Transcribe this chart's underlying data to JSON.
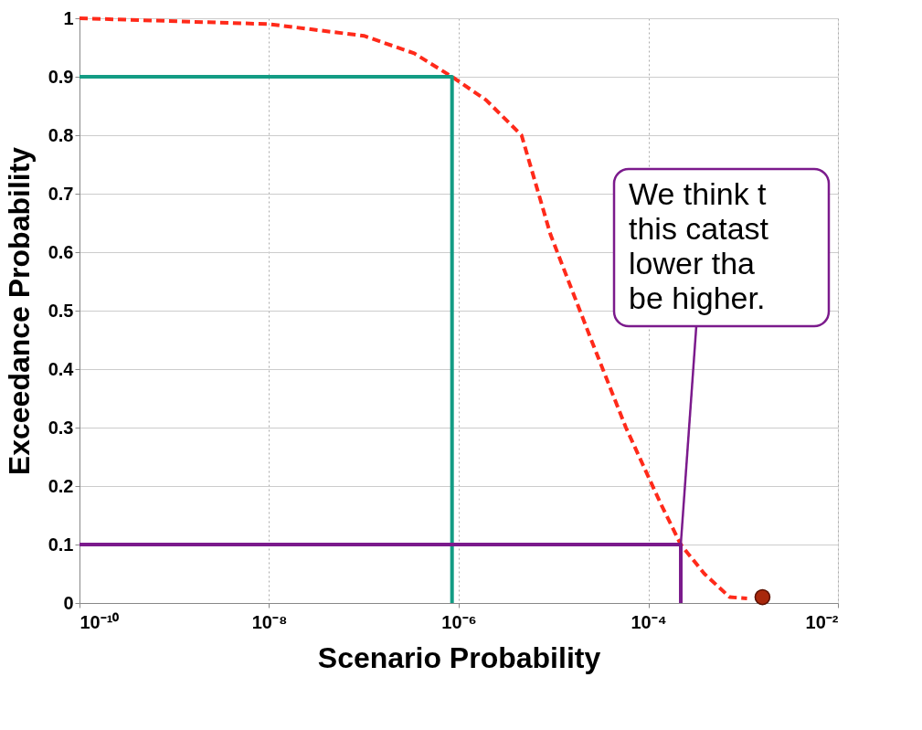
{
  "chart_data": {
    "type": "line",
    "xlabel": "Scenario Probability",
    "ylabel": "Exceedance Probability",
    "log": "x",
    "xlim": [
      1e-10,
      0.01
    ],
    "ylim": [
      0,
      1
    ],
    "xticks": [
      {
        "value": 1e-10,
        "label": "10⁻¹⁰"
      },
      {
        "value": 1e-08,
        "label": "10⁻⁸"
      },
      {
        "value": 1e-06,
        "label": "10⁻⁶"
      },
      {
        "value": 0.0001,
        "label": "10⁻⁴"
      },
      {
        "value": 0.01,
        "label": "10⁻²"
      }
    ],
    "yticks": [
      0,
      0.1,
      0.2,
      0.3,
      0.4,
      0.5,
      0.6,
      0.7,
      0.8,
      0.9,
      1
    ],
    "grid": true,
    "series": [
      {
        "color": "#ff2a1a",
        "line_style": "dashed",
        "x": [
          1e-10,
          1e-08,
          1e-07,
          3.4e-07,
          8.5e-07,
          1.95e-06,
          4.6e-06,
          9.3e-06,
          2.5e-05,
          5.8e-05,
          0.000135,
          0.00022,
          0.00039,
          0.00072,
          0.0011
        ],
        "values": [
          1,
          0.99,
          0.97,
          0.94,
          0.9,
          0.86,
          0.8,
          0.63,
          0.45,
          0.3,
          0.17,
          0.1,
          0.05,
          0.01,
          0.008
        ]
      },
      {
        "color": "#139c84",
        "line_style": "solid",
        "x": [
          1e-10,
          8.5e-07,
          8.5e-07
        ],
        "values": [
          0.9,
          0.9,
          0
        ]
      },
      {
        "color": "#7b1a8c",
        "line_style": "solid",
        "x": [
          1e-10,
          0.00022,
          0.00022
        ],
        "values": [
          0.1,
          0.1,
          0
        ]
      },
      {
        "type": "scatter",
        "color": "#a8280c",
        "marker": "circle",
        "x": [
          0.0016
        ],
        "values": [
          0.01
        ]
      }
    ],
    "annotations": [
      {
        "text": "We think t\nthis catast\nlower tha\nbe higher.",
        "x": 0.00022,
        "y": 0.1
      }
    ]
  }
}
